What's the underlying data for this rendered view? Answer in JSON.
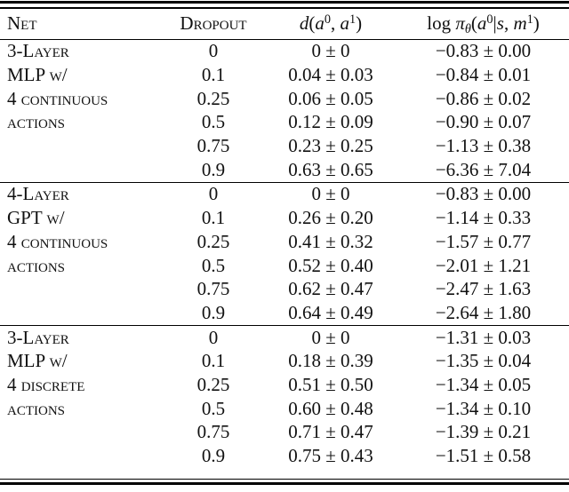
{
  "table": {
    "header": {
      "net": "Net",
      "dropout": "Dropout",
      "d": {
        "fn": "d",
        "open": "(",
        "a": "a",
        "sup_a": "0",
        "comma": ", ",
        "b": "a",
        "sup_b": "1",
        "close": ")"
      },
      "logpi": {
        "log": "log ",
        "pi": "π",
        "theta": "θ",
        "open": "(",
        "a": "a",
        "sup_a": "0",
        "bar": "|",
        "s": "s",
        "comma": ", ",
        "m": "m",
        "sup_m": "1",
        "close": ")"
      }
    },
    "sections": [
      {
        "rows": [
          {
            "net": "3-Layer",
            "dropout": "0",
            "distance": "0 ± 0",
            "logprob": "−0.83 ± 0.00"
          },
          {
            "net": "MLP w/",
            "dropout": "0.1",
            "distance": "0.04 ± 0.03",
            "logprob": "−0.84 ± 0.01"
          },
          {
            "net": "4 continuous",
            "dropout": "0.25",
            "distance": "0.06 ± 0.05",
            "logprob": "−0.86 ± 0.02"
          },
          {
            "net": "actions",
            "dropout": "0.5",
            "distance": "0.12 ± 0.09",
            "logprob": "−0.90 ± 0.07"
          },
          {
            "net": "",
            "dropout": "0.75",
            "distance": "0.23 ± 0.25",
            "logprob": "−1.13 ± 0.38"
          },
          {
            "net": "",
            "dropout": "0.9",
            "distance": "0.63 ± 0.65",
            "logprob": "−6.36 ± 7.04"
          }
        ]
      },
      {
        "rows": [
          {
            "net": "4-Layer",
            "dropout": "0",
            "distance": "0 ± 0",
            "logprob": "−0.83 ± 0.00"
          },
          {
            "net": "GPT w/",
            "dropout": "0.1",
            "distance": "0.26 ± 0.20",
            "logprob": "−1.14 ± 0.33"
          },
          {
            "net": "4 continuous",
            "dropout": "0.25",
            "distance": "0.41 ± 0.32",
            "logprob": "−1.57 ± 0.77"
          },
          {
            "net": "actions",
            "dropout": "0.5",
            "distance": "0.52 ± 0.40",
            "logprob": "−2.01 ± 1.21"
          },
          {
            "net": "",
            "dropout": "0.75",
            "distance": "0.62 ± 0.47",
            "logprob": "−2.47 ± 1.63"
          },
          {
            "net": "",
            "dropout": "0.9",
            "distance": "0.64 ± 0.49",
            "logprob": "−2.64 ± 1.80"
          }
        ]
      },
      {
        "rows": [
          {
            "net": "3-Layer",
            "dropout": "0",
            "distance": "0 ± 0",
            "logprob": "−1.31 ± 0.03"
          },
          {
            "net": "MLP w/",
            "dropout": "0.1",
            "distance": "0.18 ± 0.39",
            "logprob": "−1.35 ± 0.04"
          },
          {
            "net": "4 discrete",
            "dropout": "0.25",
            "distance": "0.51 ± 0.50",
            "logprob": "−1.34 ± 0.05"
          },
          {
            "net": "actions",
            "dropout": "0.5",
            "distance": "0.60 ± 0.48",
            "logprob": "−1.34 ± 0.10"
          },
          {
            "net": "",
            "dropout": "0.75",
            "distance": "0.71 ± 0.47",
            "logprob": "−1.39 ± 0.21"
          },
          {
            "net": "",
            "dropout": "0.9",
            "distance": "0.75 ± 0.43",
            "logprob": "−1.51 ± 0.58"
          }
        ]
      }
    ]
  }
}
